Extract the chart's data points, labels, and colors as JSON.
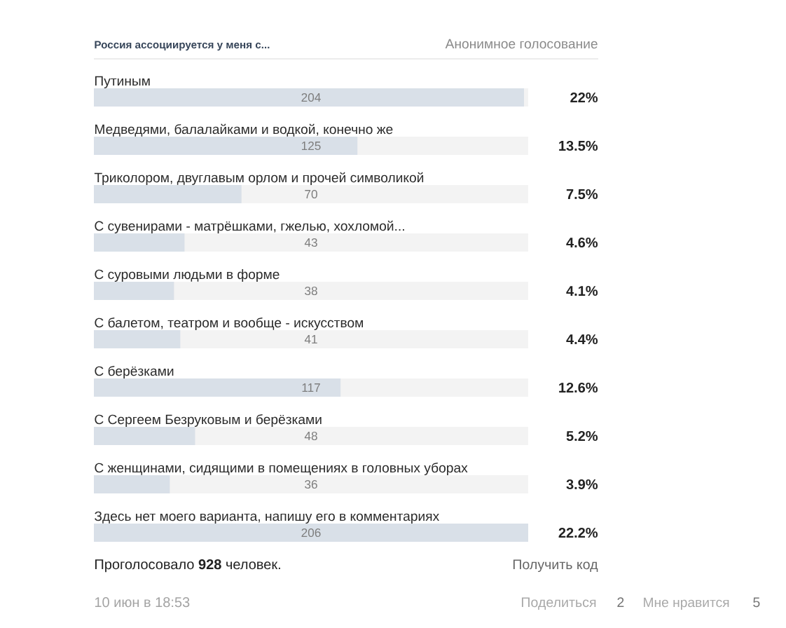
{
  "chart_data": {
    "type": "bar",
    "orientation": "horizontal",
    "title": "Россия ассоциируется у меня с...",
    "subtitle": "Анонимное голосование",
    "categories": [
      "Путиным",
      "Медведями, балалайками и водкой, конечно же",
      "Триколором, двуглавым орлом и прочей символикой",
      "С сувенирами - матрёшками, гжелью, хохломой...",
      "С суровыми людьми в форме",
      "С балетом, театром и вообще - искусством",
      "С берёзками",
      "С Сергеем Безруковым и берёзками",
      "С женщинами, сидящими в помещениях в головных уборах",
      "Здесь нет моего варианта, напишу его в комментариях"
    ],
    "values": [
      204,
      125,
      70,
      43,
      38,
      41,
      117,
      48,
      36,
      206
    ],
    "color": "#d9e0e8",
    "data_labels": true,
    "tick_labels": "y",
    "annotations": [
      "22%",
      "13.5%",
      "7.5%",
      "4.6%",
      "4.1%",
      "4.4%",
      "12.6%",
      "5.2%",
      "3.9%",
      "22.2%",
      "Проголосовало **928** человек.",
      "Получить код",
      "10 июн в 18:53",
      "Поделиться",
      "2",
      "Мне нравится",
      "5"
    ]
  }
}
